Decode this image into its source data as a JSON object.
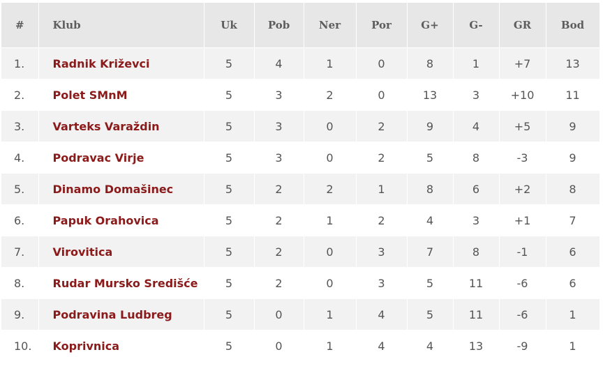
{
  "table": {
    "headers": {
      "rank": "#",
      "club": "Klub",
      "played": "Uk",
      "won": "Pob",
      "drawn": "Ner",
      "lost": "Por",
      "goals_for": "G+",
      "goals_against": "G-",
      "goal_diff": "GR",
      "points": "Bod"
    },
    "rows": [
      {
        "rank": "1.",
        "club": "Radnik Križevci",
        "played": "5",
        "won": "4",
        "drawn": "1",
        "lost": "0",
        "goals_for": "8",
        "goals_against": "1",
        "goal_diff": "+7",
        "points": "13"
      },
      {
        "rank": "2.",
        "club": "Polet SMnM",
        "played": "5",
        "won": "3",
        "drawn": "2",
        "lost": "0",
        "goals_for": "13",
        "goals_against": "3",
        "goal_diff": "+10",
        "points": "11"
      },
      {
        "rank": "3.",
        "club": "Varteks Varaždin",
        "played": "5",
        "won": "3",
        "drawn": "0",
        "lost": "2",
        "goals_for": "9",
        "goals_against": "4",
        "goal_diff": "+5",
        "points": "9"
      },
      {
        "rank": "4.",
        "club": "Podravac Virje",
        "played": "5",
        "won": "3",
        "drawn": "0",
        "lost": "2",
        "goals_for": "5",
        "goals_against": "8",
        "goal_diff": "-3",
        "points": "9"
      },
      {
        "rank": "5.",
        "club": "Dinamo Domašinec",
        "played": "5",
        "won": "2",
        "drawn": "2",
        "lost": "1",
        "goals_for": "8",
        "goals_against": "6",
        "goal_diff": "+2",
        "points": "8"
      },
      {
        "rank": "6.",
        "club": "Papuk Orahovica",
        "played": "5",
        "won": "2",
        "drawn": "1",
        "lost": "2",
        "goals_for": "4",
        "goals_against": "3",
        "goal_diff": "+1",
        "points": "7"
      },
      {
        "rank": "7.",
        "club": "Virovitica",
        "played": "5",
        "won": "2",
        "drawn": "0",
        "lost": "3",
        "goals_for": "7",
        "goals_against": "8",
        "goal_diff": "-1",
        "points": "6"
      },
      {
        "rank": "8.",
        "club": "Rudar Mursko Središće",
        "played": "5",
        "won": "2",
        "drawn": "0",
        "lost": "3",
        "goals_for": "5",
        "goals_against": "11",
        "goal_diff": "-6",
        "points": "6"
      },
      {
        "rank": "9.",
        "club": "Podravina Ludbreg",
        "played": "5",
        "won": "0",
        "drawn": "1",
        "lost": "4",
        "goals_for": "5",
        "goals_against": "11",
        "goal_diff": "-6",
        "points": "1"
      },
      {
        "rank": "10.",
        "club": "Koprivnica",
        "played": "5",
        "won": "0",
        "drawn": "1",
        "lost": "4",
        "goals_for": "4",
        "goals_against": "13",
        "goal_diff": "-9",
        "points": "1"
      }
    ]
  },
  "colors": {
    "header_bg": "#e7e7e7",
    "stripe_bg": "#f2f2f2",
    "club_link": "#8b1a1a",
    "text": "#555555"
  }
}
